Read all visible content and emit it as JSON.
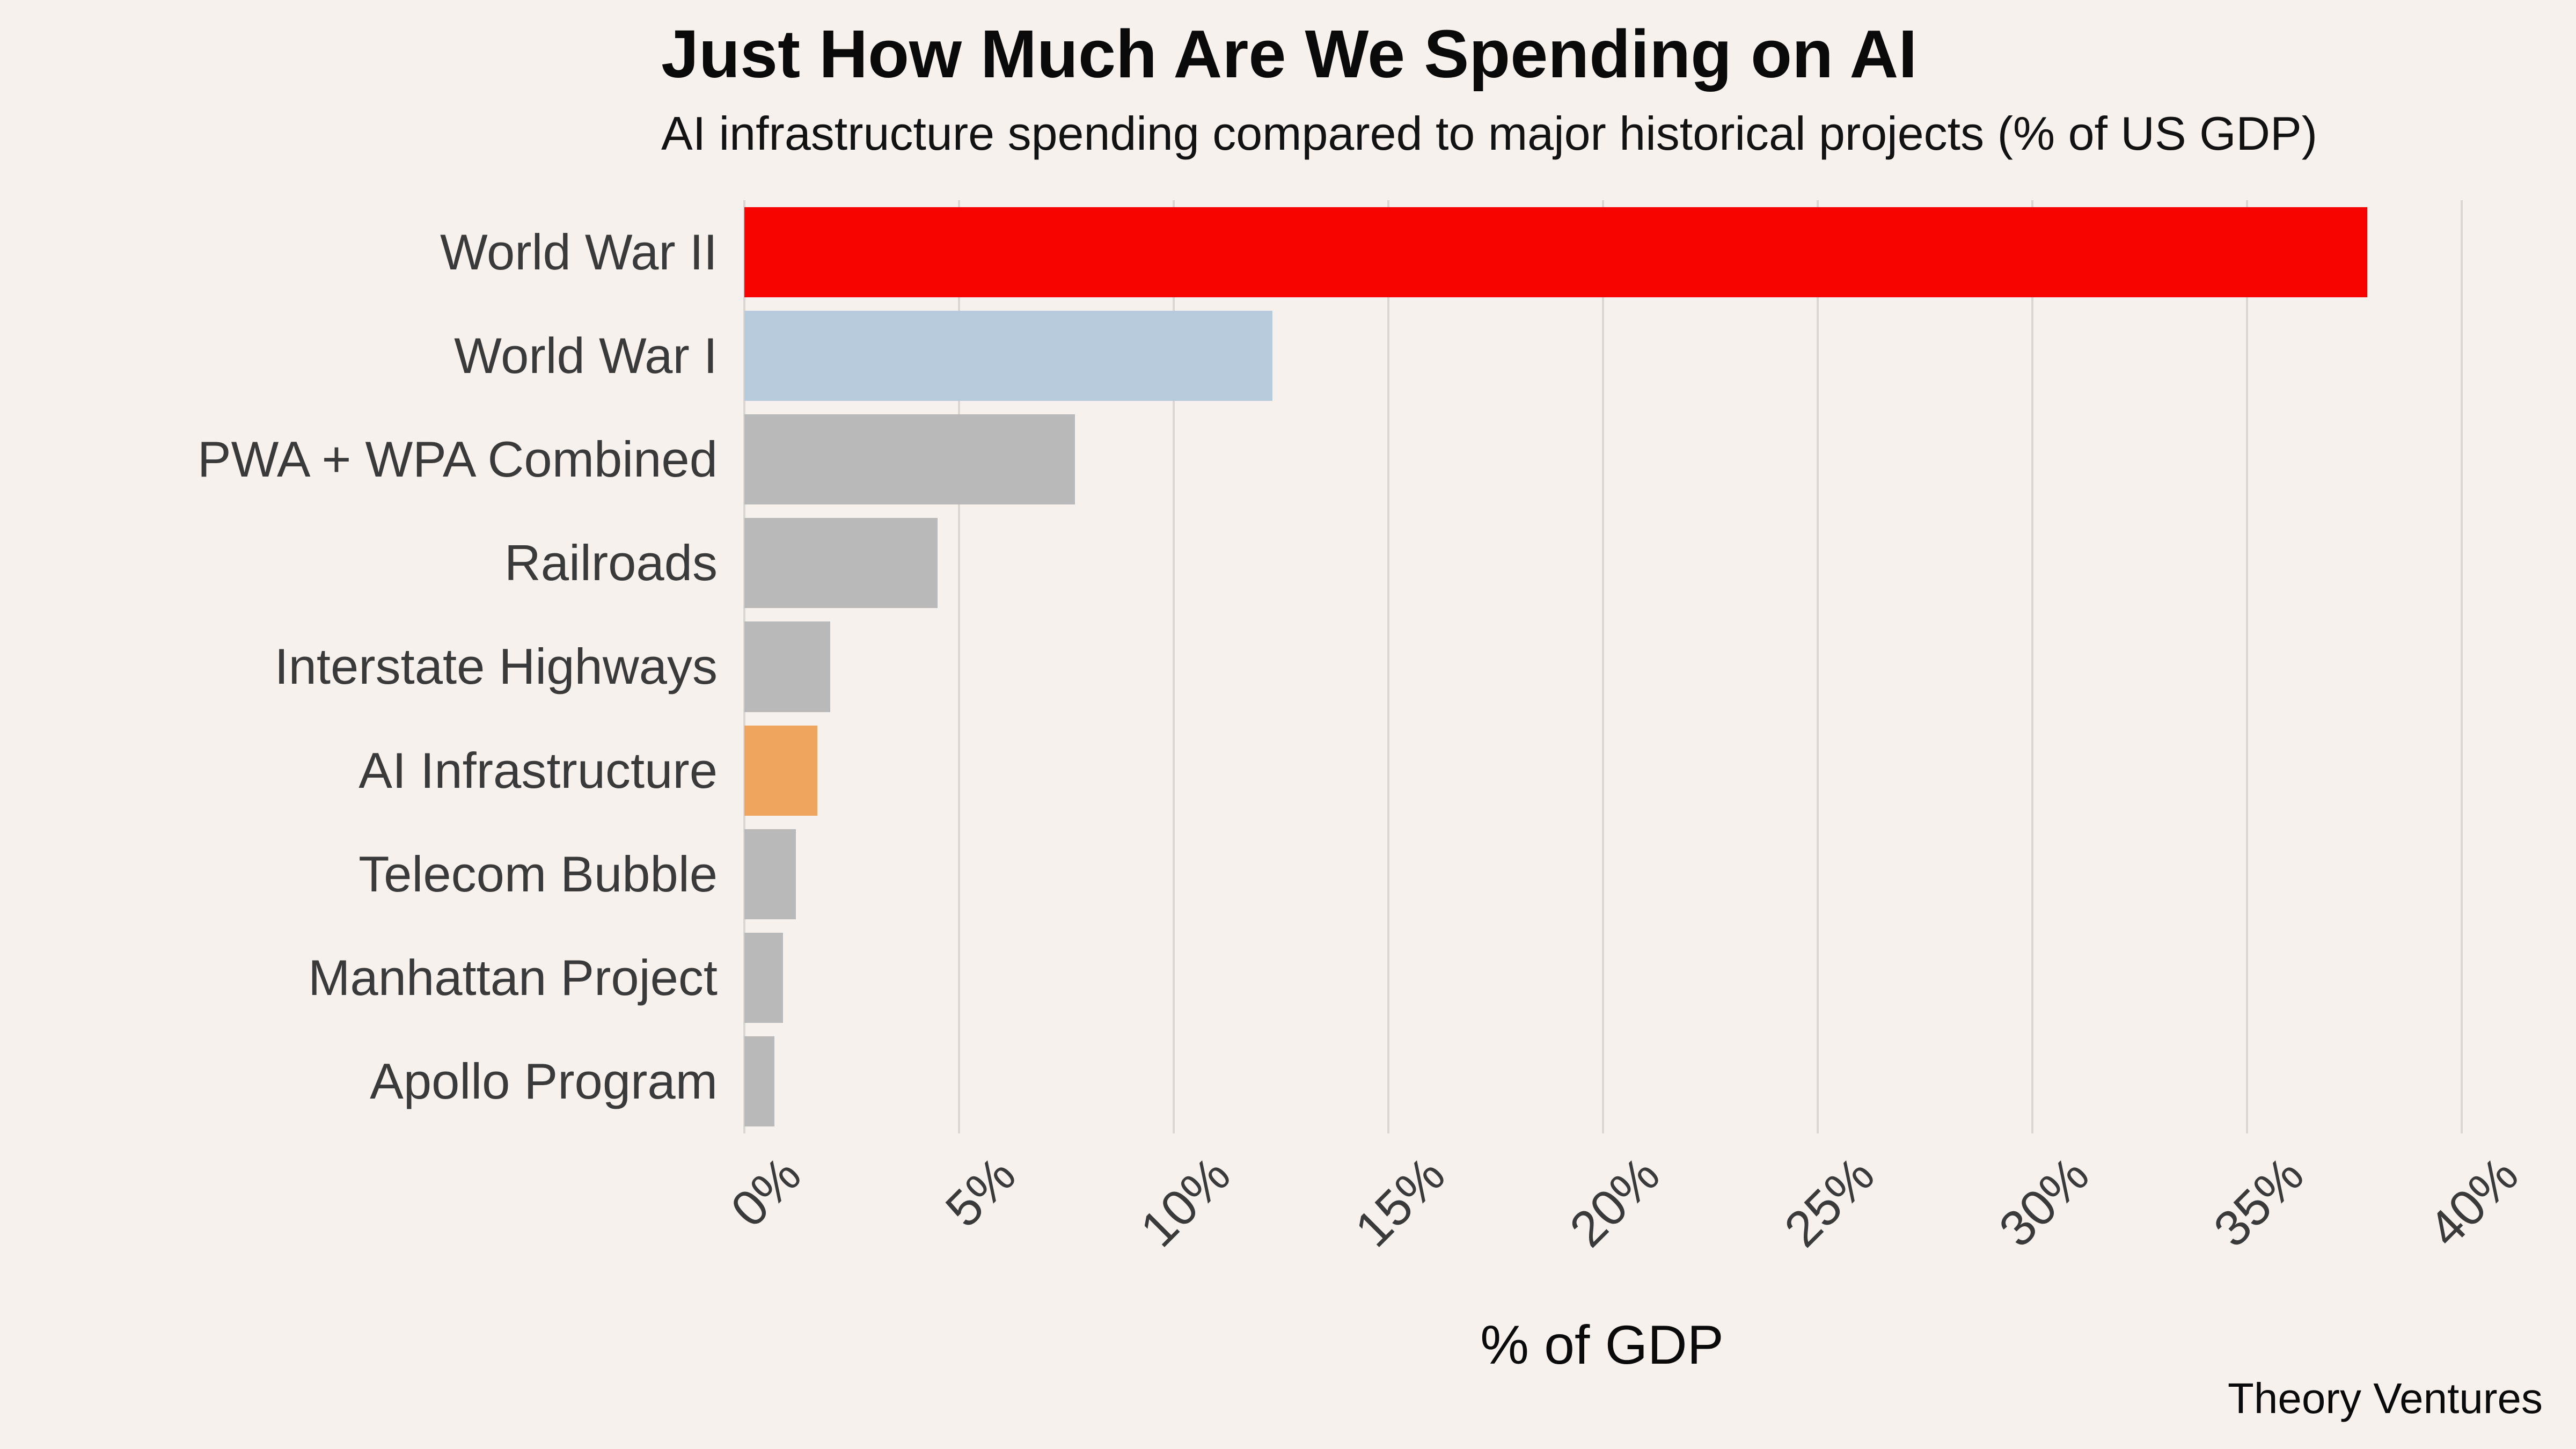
{
  "header": {
    "title": "Just How Much Are We Spending on AI",
    "subtitle": "AI infrastructure spending compared to major historical projects (% of US GDP)"
  },
  "chart_data": {
    "type": "bar",
    "orientation": "horizontal",
    "title": "Just How Much Are We Spending on AI",
    "subtitle": "AI infrastructure spending compared to major historical projects (% of US GDP)",
    "categories": [
      "World War II",
      "World War I",
      "PWA + WPA Combined",
      "Railroads",
      "Interstate Highways",
      "AI Infrastructure",
      "Telecom Bubble",
      "Manhattan Project",
      "Apollo Program"
    ],
    "values": [
      37.8,
      12.3,
      7.7,
      4.5,
      2.0,
      1.7,
      1.2,
      0.9,
      0.7
    ],
    "bar_colors": [
      "#f80400",
      "#b8cbdc",
      "#b9b9b9",
      "#b9b9b9",
      "#b9b9b9",
      "#f0a55e",
      "#b9b9b9",
      "#b9b9b9",
      "#b9b9b9"
    ],
    "xlabel": "% of GDP",
    "x_ticks": [
      "0%",
      "5%",
      "10%",
      "15%",
      "20%",
      "25%",
      "30%",
      "35%",
      "40%"
    ],
    "x_tick_values": [
      0,
      5,
      10,
      15,
      20,
      25,
      30,
      35,
      40
    ],
    "xlim": [
      0,
      41.7
    ],
    "grid": "vertical-only",
    "legend": "none",
    "tick_label_rotation_deg": 45
  },
  "footer": {
    "attribution": "Theory Ventures"
  },
  "colors": {
    "background": "#f6f1ec",
    "gridline": "#dad6d1",
    "highlight_red": "#f80400",
    "highlight_blue": "#b8cbdc",
    "highlight_orange": "#f0a55e",
    "neutral_bar": "#b9b9b9",
    "label_text": "#3a3a3a",
    "title_text": "#0a0a0a"
  }
}
